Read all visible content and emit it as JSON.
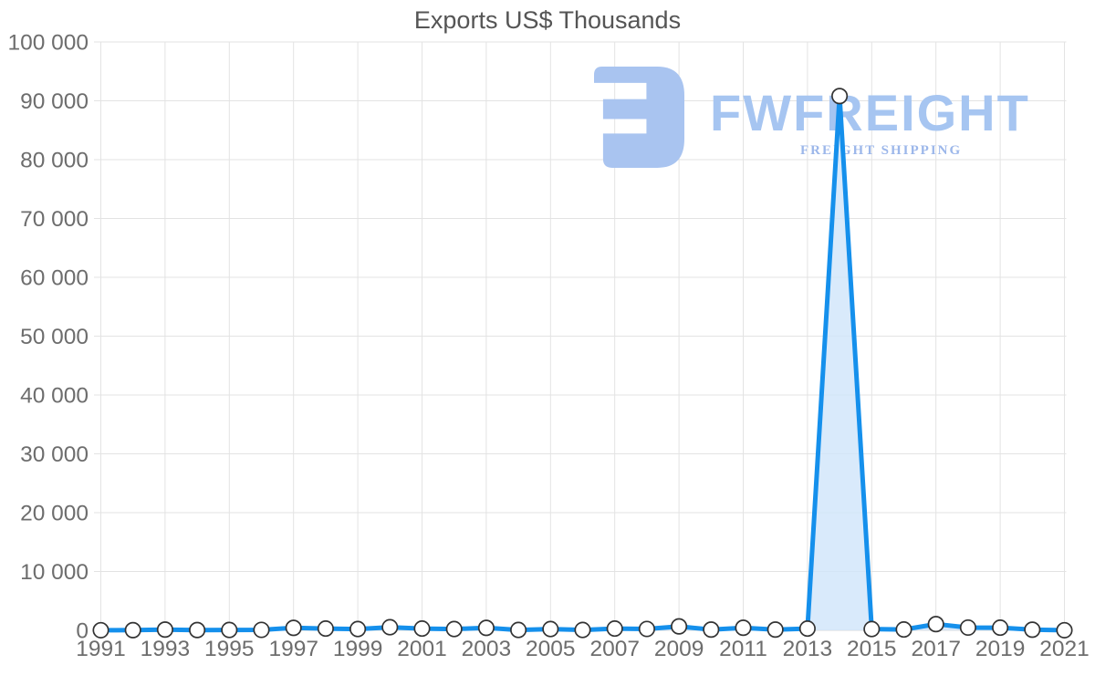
{
  "watermark": {
    "brand": "FWFREIGHT",
    "tagline": "FREIGHT SHIPPING",
    "logo_icon": "fwfreight-reversed-e-logo",
    "colors": {
      "mark": "#a9c4f0",
      "brand_text": "#a6c5f1",
      "tagline_text": "#9cb7ea"
    }
  },
  "chart_data": {
    "type": "area",
    "title": "Exports US$ Thousands",
    "x": [
      1991,
      1992,
      1993,
      1994,
      1995,
      1996,
      1997,
      1998,
      1999,
      2000,
      2001,
      2002,
      2003,
      2004,
      2005,
      2006,
      2007,
      2008,
      2009,
      2010,
      2011,
      2012,
      2013,
      2014,
      2015,
      2016,
      2017,
      2018,
      2019,
      2020,
      2021
    ],
    "values": [
      20,
      30,
      120,
      40,
      60,
      80,
      420,
      300,
      220,
      520,
      300,
      210,
      420,
      60,
      210,
      60,
      300,
      230,
      670,
      120,
      430,
      120,
      290,
      90800,
      210,
      140,
      1050,
      460,
      450,
      110,
      10
    ],
    "x_tick_labels": [
      "1991",
      "1993",
      "1995",
      "1997",
      "1999",
      "2001",
      "2003",
      "2005",
      "2007",
      "2009",
      "2011",
      "2013",
      "2015",
      "2017",
      "2019",
      "2021"
    ],
    "y_tick_labels": [
      "0",
      "10 000",
      "20 000",
      "30 000",
      "40 000",
      "50 000",
      "60 000",
      "70 000",
      "80 000",
      "90 000",
      "100 000"
    ],
    "ylim": [
      0,
      100000
    ],
    "y_tick_step": 10000,
    "grid": true,
    "legend": "none",
    "marker": "white-circle-dark-outline",
    "colors": {
      "line": "#1590ec",
      "area_fill": "#cfe5fa",
      "marker_fill": "#ffffff",
      "marker_stroke": "#333333",
      "grid": "#e3e3e3",
      "axis_line": "#d8d8d8",
      "axis_labels": "#6d6d6d",
      "title": "#555555"
    }
  }
}
